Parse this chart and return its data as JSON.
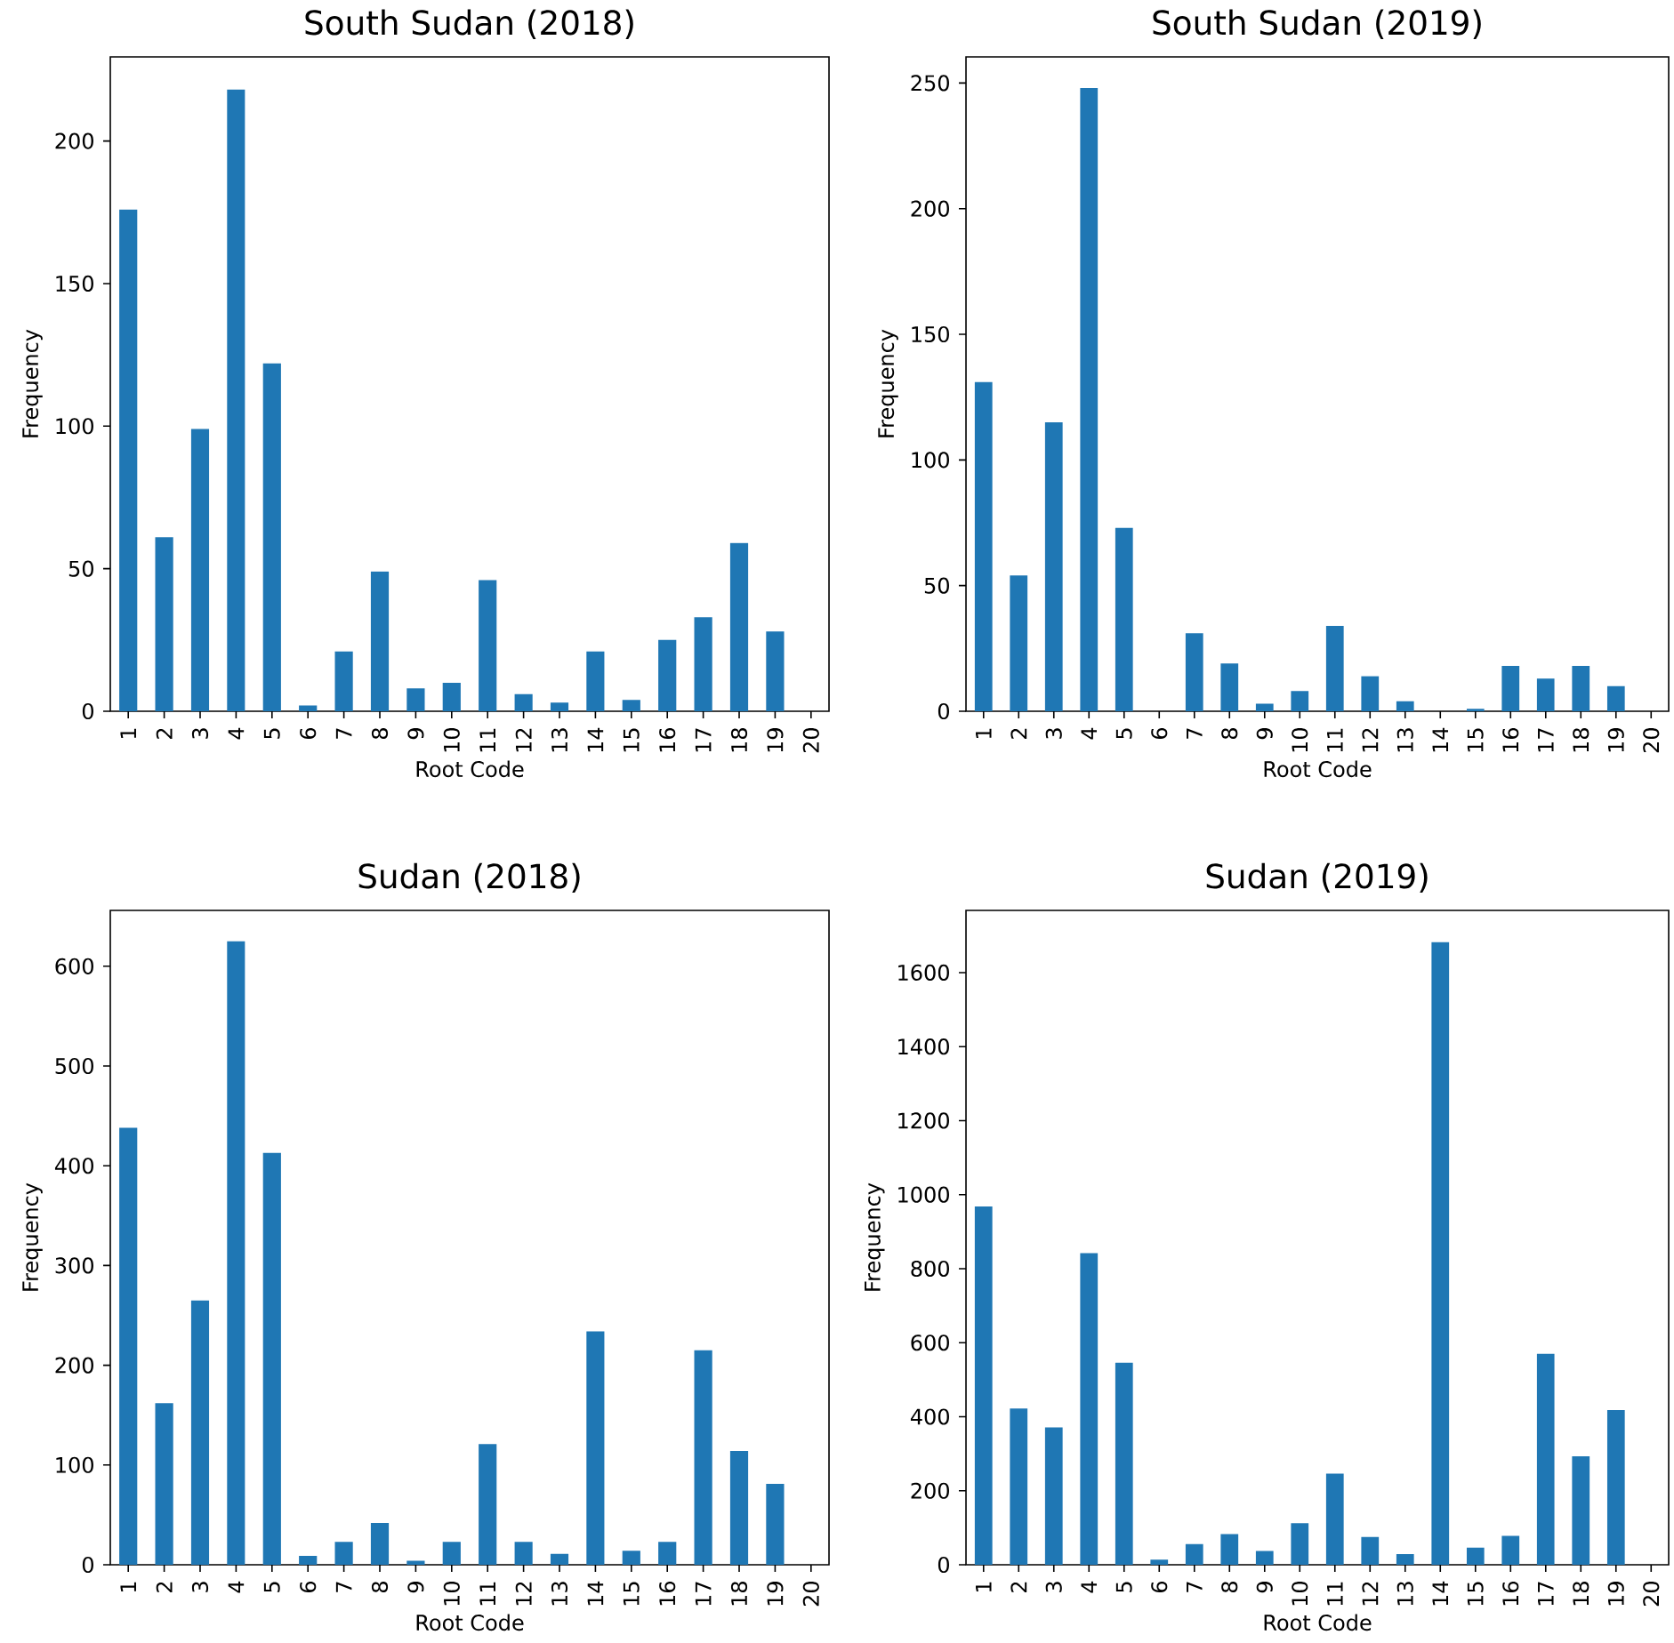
{
  "chart_data": [
    {
      "type": "bar",
      "title": "South Sudan (2018)",
      "xlabel": "Root Code",
      "ylabel": "Frequency",
      "categories": [
        "1",
        "2",
        "3",
        "4",
        "5",
        "6",
        "7",
        "8",
        "9",
        "10",
        "11",
        "12",
        "13",
        "14",
        "15",
        "16",
        "17",
        "18",
        "19",
        "20"
      ],
      "values": [
        176,
        61,
        99,
        218,
        122,
        2,
        21,
        49,
        8,
        10,
        46,
        6,
        3,
        21,
        4,
        25,
        33,
        59,
        28,
        0
      ],
      "color": "#1f77b4",
      "ylim": [
        0,
        229.5
      ],
      "yticks": [
        0,
        50,
        100,
        150,
        200
      ]
    },
    {
      "type": "bar",
      "title": "South Sudan (2019)",
      "xlabel": "Root Code",
      "ylabel": "Frequency",
      "categories": [
        "1",
        "2",
        "3",
        "4",
        "5",
        "6",
        "7",
        "8",
        "9",
        "10",
        "11",
        "12",
        "13",
        "14",
        "15",
        "16",
        "17",
        "18",
        "19",
        "20"
      ],
      "values": [
        131,
        54,
        115,
        248,
        73,
        0,
        31,
        19,
        3,
        8,
        34,
        14,
        4,
        0,
        1,
        18,
        13,
        18,
        10,
        0
      ],
      "color": "#1f77b4",
      "ylim": [
        0,
        260.4
      ],
      "yticks": [
        0,
        50,
        100,
        150,
        200,
        250
      ]
    },
    {
      "type": "bar",
      "title": "Sudan (2018)",
      "xlabel": "Root Code",
      "ylabel": "Frequency",
      "categories": [
        "1",
        "2",
        "3",
        "4",
        "5",
        "6",
        "7",
        "8",
        "9",
        "10",
        "11",
        "12",
        "13",
        "14",
        "15",
        "16",
        "17",
        "18",
        "19",
        "20"
      ],
      "values": [
        438,
        162,
        265,
        625,
        413,
        9,
        23,
        42,
        4,
        23,
        121,
        23,
        11,
        234,
        14,
        23,
        215,
        114,
        81,
        0
      ],
      "color": "#1f77b4",
      "ylim": [
        0,
        656
      ],
      "yticks": [
        0,
        100,
        200,
        300,
        400,
        500,
        600
      ]
    },
    {
      "type": "bar",
      "title": "Sudan (2019)",
      "xlabel": "Root Code",
      "ylabel": "Frequency",
      "categories": [
        "1",
        "2",
        "3",
        "4",
        "5",
        "6",
        "7",
        "8",
        "9",
        "10",
        "11",
        "12",
        "13",
        "14",
        "15",
        "16",
        "17",
        "18",
        "19",
        "20"
      ],
      "values": [
        968,
        422,
        371,
        842,
        546,
        14,
        56,
        83,
        37,
        112,
        246,
        75,
        29,
        1682,
        46,
        78,
        570,
        293,
        418,
        0
      ],
      "color": "#1f77b4",
      "ylim": [
        0,
        1768
      ],
      "yticks": [
        0,
        200,
        400,
        600,
        800,
        1000,
        1200,
        1400,
        1600
      ]
    }
  ]
}
